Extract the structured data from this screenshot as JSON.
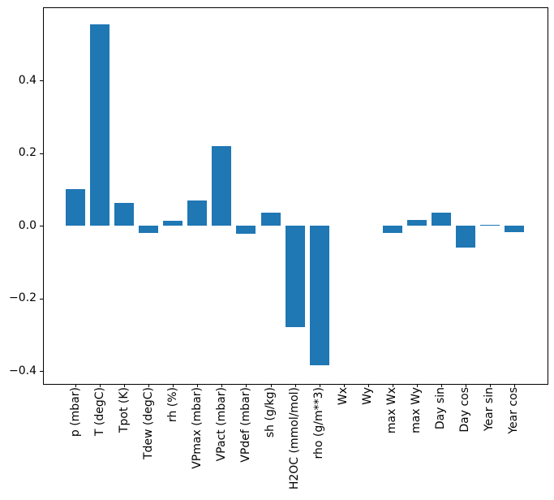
{
  "figure": {
    "background_color": "#ffffff",
    "bar_color": "#1f77b4",
    "axis_color": "#000000",
    "tick_label_color": "#000000"
  },
  "chart_data": {
    "type": "bar",
    "title": "",
    "xlabel": "",
    "ylabel": "",
    "grid": false,
    "legend": null,
    "categories": [
      "p (mbar)",
      "T (degC)",
      "Tpot (K)",
      "Tdew (degC)",
      "rh (%)",
      "VPmax (mbar)",
      "VPact (mbar)",
      "VPdef (mbar)",
      "sh (g/kg)",
      "H2OC (mmol/mol)",
      "rho (g/m**3)",
      "Wx",
      "Wy",
      "max Wx",
      "max Wy",
      "Day sin",
      "Day cos",
      "Year sin",
      "Year cos"
    ],
    "values": [
      0.1,
      0.554,
      0.064,
      -0.019,
      0.014,
      0.069,
      0.219,
      -0.022,
      0.036,
      -0.278,
      -0.384,
      0.0,
      0.0,
      -0.02,
      0.016,
      0.035,
      -0.06,
      0.003,
      -0.018
    ],
    "ylim": [
      -0.433,
      0.601
    ],
    "xlim": [
      -1.34,
      19.34
    ],
    "yticks": [
      0.4,
      0.2,
      0.0,
      -0.2,
      -0.4
    ],
    "ytick_labels": [
      "0.4",
      "0.2",
      "0.0",
      "−0.2",
      "−0.4"
    ]
  }
}
